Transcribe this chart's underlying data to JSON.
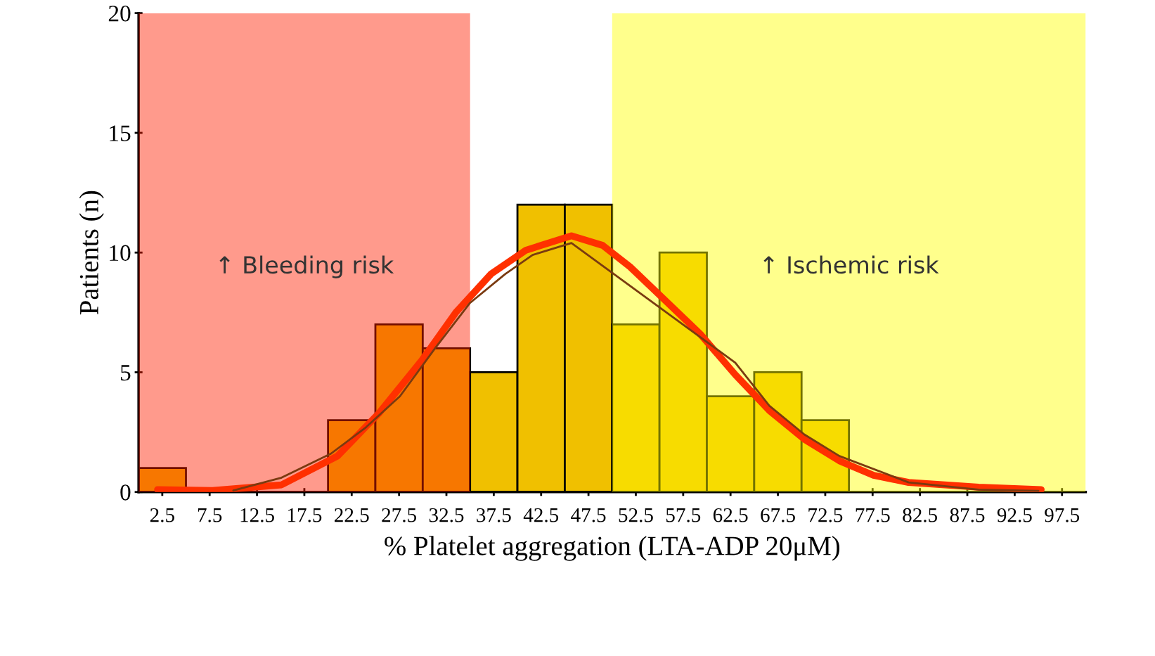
{
  "chart_data": {
    "type": "histogram",
    "xlabel": "% Platelet aggregation (LTA-ADP 20μM)",
    "ylabel": "Patients (n)",
    "bins": [
      0,
      5,
      10,
      15,
      20,
      25,
      30,
      35,
      40,
      45,
      50,
      55,
      60,
      65,
      70,
      75,
      80,
      85,
      90,
      95,
      100
    ],
    "values": [
      1,
      0,
      0,
      0,
      3,
      7,
      6,
      5,
      12,
      12,
      7,
      10,
      4,
      5,
      3,
      0,
      0,
      0,
      0,
      0
    ],
    "color": "#f0c000",
    "series": [
      {
        "type": "line",
        "color": "#7a3a10",
        "x": [
          10,
          15.1,
          20.3,
          24,
          27.6,
          31.3,
          35,
          38.7,
          41.6,
          45.7,
          63,
          66.6,
          70.3,
          74,
          81.3,
          88.7,
          95
        ],
        "values": [
          0.06,
          0.6,
          1.6,
          2.7,
          4,
          6,
          7.9,
          9.1,
          9.9,
          10.4,
          5.4,
          3.6,
          2.4,
          1.5,
          0.4,
          0.1,
          0.05
        ]
      },
      {
        "type": "line",
        "color": "#ff3000",
        "x": [
          2,
          7.8,
          15.1,
          21,
          25.4,
          29.9,
          33.5,
          37.2,
          40.9,
          45.7,
          49,
          51.9,
          55.6,
          59.3,
          63,
          66.6,
          70.3,
          74,
          77.6,
          81.3,
          88.7,
          95.3
        ],
        "values": [
          0.1,
          0.06,
          0.3,
          1.5,
          3.3,
          5.5,
          7.5,
          9.1,
          10.1,
          10.7,
          10.3,
          9.4,
          8,
          6.6,
          4.9,
          3.4,
          2.2,
          1.3,
          0.7,
          0.4,
          0.2,
          0.1
        ]
      }
    ],
    "bands": [
      {
        "axis": "x",
        "from": 0,
        "to": 35,
        "label": "↑ Bleeding risk",
        "color": "#ff2000"
      },
      {
        "axis": "x",
        "from": 50,
        "to": 100,
        "label": "↑ Ischemic risk",
        "color": "#ffff00"
      }
    ],
    "xlim": [
      0,
      100
    ],
    "xticks": [
      2.5,
      7.5,
      12.5,
      17.5,
      22.5,
      27.5,
      32.5,
      37.5,
      42.5,
      47.5,
      52.5,
      57.5,
      62.5,
      67.5,
      72.5,
      77.5,
      82.5,
      87.5,
      92.5,
      97.5
    ],
    "ylim": [
      0,
      20
    ],
    "yticks": [
      0,
      5,
      10,
      15,
      20
    ],
    "grid": false,
    "legend": false
  }
}
